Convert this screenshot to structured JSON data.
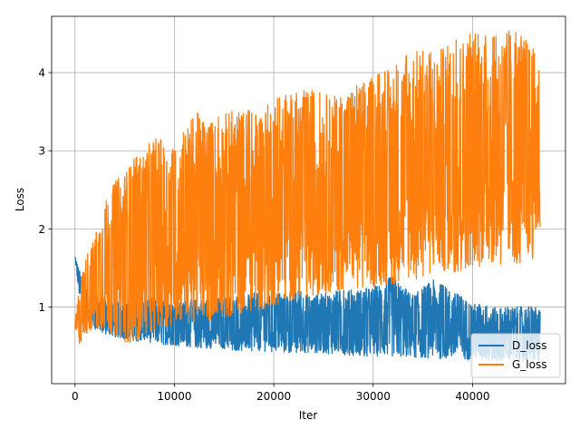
{
  "chart_data": {
    "type": "line",
    "title": "",
    "xlabel": "Iter",
    "ylabel": "Loss",
    "xlim": [
      -2350,
      49350
    ],
    "ylim": [
      0.02,
      4.72
    ],
    "xticks": [
      0,
      10000,
      20000,
      30000,
      40000
    ],
    "yticks": [
      1,
      2,
      3,
      4
    ],
    "grid": true,
    "legend_position": "lower-right",
    "series": [
      {
        "name": "D_loss",
        "color": "#1f77b4",
        "x": [
          0,
          500,
          1000,
          2000,
          3000,
          4000,
          5000,
          6000,
          7000,
          8000,
          9000,
          10000,
          12000,
          14000,
          16000,
          18000,
          20000,
          22000,
          24000,
          26000,
          28000,
          30000,
          32000,
          34000,
          36000,
          38000,
          40000,
          42000,
          44000,
          46000,
          46800
        ],
        "lower": [
          1.62,
          1.05,
          0.85,
          0.72,
          0.65,
          0.62,
          0.59,
          0.57,
          0.55,
          0.54,
          0.52,
          0.51,
          0.48,
          0.47,
          0.45,
          0.44,
          0.43,
          0.42,
          0.41,
          0.4,
          0.38,
          0.37,
          0.36,
          0.35,
          0.34,
          0.33,
          0.32,
          0.31,
          0.31,
          0.3,
          0.3
        ],
        "upper": [
          1.65,
          1.45,
          1.25,
          1.15,
          1.1,
          1.08,
          1.05,
          1.08,
          1.12,
          1.1,
          1.08,
          1.05,
          1.1,
          1.12,
          1.12,
          1.18,
          1.15,
          1.22,
          1.15,
          1.2,
          1.22,
          1.25,
          1.4,
          1.15,
          1.35,
          1.2,
          1.05,
          1.0,
          1.0,
          1.02,
          0.95
        ]
      },
      {
        "name": "G_loss",
        "color": "#ff7f0e",
        "x": [
          0,
          500,
          1000,
          2000,
          3000,
          4000,
          5000,
          6000,
          7000,
          8000,
          9000,
          10000,
          12000,
          14000,
          16000,
          18000,
          20000,
          22000,
          24000,
          26000,
          28000,
          30000,
          32000,
          34000,
          36000,
          38000,
          40000,
          42000,
          44000,
          46000,
          46800
        ],
        "lower": [
          0.7,
          0.5,
          0.65,
          0.7,
          0.68,
          0.65,
          0.55,
          0.55,
          0.65,
          0.7,
          0.75,
          0.8,
          0.8,
          0.85,
          0.9,
          0.95,
          1.0,
          1.1,
          1.15,
          1.2,
          1.25,
          1.25,
          1.3,
          1.35,
          1.4,
          1.45,
          1.5,
          1.55,
          1.55,
          1.6,
          1.95
        ],
        "upper": [
          0.8,
          1.35,
          1.6,
          1.9,
          2.35,
          2.6,
          2.75,
          2.9,
          3.0,
          3.2,
          3.1,
          3.0,
          3.5,
          3.4,
          3.55,
          3.5,
          3.65,
          3.75,
          3.8,
          3.7,
          3.85,
          3.95,
          4.05,
          4.3,
          4.25,
          4.4,
          4.5,
          4.45,
          4.55,
          4.35,
          4.1
        ]
      }
    ]
  }
}
